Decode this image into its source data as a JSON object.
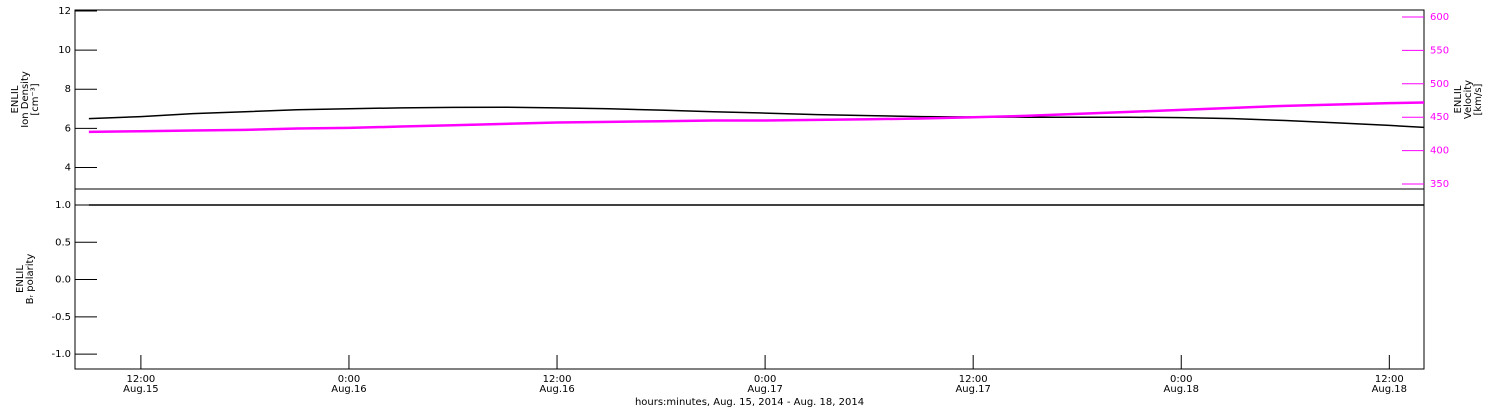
{
  "chart_data": [
    {
      "type": "line",
      "ylabel": [
        "ENLIL",
        "Ion Density",
        "[cm⁻³]"
      ],
      "y2label": [
        "ENLIL",
        "Velocity",
        "[km/s]"
      ],
      "x": [
        9,
        12,
        15,
        18,
        21,
        24,
        27,
        30,
        33,
        36,
        39,
        42,
        45,
        48,
        51,
        54,
        57,
        60,
        63,
        66,
        69,
        72,
        75,
        78,
        81,
        84,
        86
      ],
      "xlim": [
        8.2,
        86.0
      ],
      "ylim": [
        2.9,
        12.05
      ],
      "yticks": [
        4,
        6,
        8,
        10,
        12
      ],
      "y2lim": [
        342.5,
        610.5
      ],
      "y2ticks": [
        350,
        400,
        450,
        500,
        550,
        600
      ],
      "y2color": "#ff00ff",
      "series": [
        {
          "color": "#000000",
          "values": [
            6.5,
            6.6,
            6.75,
            6.85,
            6.95,
            7.0,
            7.05,
            7.07,
            7.08,
            7.05,
            7.0,
            6.93,
            6.85,
            6.78,
            6.7,
            6.65,
            6.6,
            6.58,
            6.57,
            6.57,
            6.57,
            6.55,
            6.5,
            6.4,
            6.28,
            6.15,
            6.05
          ]
        },
        {
          "color": "#ff00ff",
          "axis": "y2",
          "values": [
            428,
            429,
            430,
            431,
            433,
            434,
            436,
            438,
            440,
            442,
            443,
            444,
            445,
            445,
            446,
            447,
            448,
            450,
            452,
            455,
            458,
            461,
            464,
            467,
            469,
            471,
            472
          ]
        }
      ]
    },
    {
      "type": "line",
      "ylabel": [
        "ENLIL",
        "Bᵣ polarity"
      ],
      "xlabel": "hours:minutes, Aug. 15, 2014 - Aug. 18, 2014",
      "x": [
        9,
        12,
        15,
        18,
        21,
        24,
        27,
        30,
        33,
        36,
        39,
        42,
        45,
        48,
        51,
        54,
        57,
        60,
        63,
        66,
        69,
        72,
        75,
        78,
        81,
        84,
        86
      ],
      "xlim": [
        8.2,
        86.0
      ],
      "xticks": [
        {
          "value": 12,
          "label": [
            "12:00",
            "Aug.15"
          ]
        },
        {
          "value": 24,
          "label": [
            "0:00",
            "Aug.16"
          ]
        },
        {
          "value": 36,
          "label": [
            "12:00",
            "Aug.16"
          ]
        },
        {
          "value": 48,
          "label": [
            "0:00",
            "Aug.17"
          ]
        },
        {
          "value": 60,
          "label": [
            "12:00",
            "Aug.17"
          ]
        },
        {
          "value": 72,
          "label": [
            "0:00",
            "Aug.18"
          ]
        },
        {
          "value": 84,
          "label": [
            "12:00",
            "Aug.18"
          ]
        }
      ],
      "ylim": [
        -1.2,
        1.215
      ],
      "yticks": [
        {
          "value": 1,
          "label": "1.0"
        },
        {
          "value": 0.5,
          "label": "0.5"
        },
        {
          "value": 0,
          "label": "0.0"
        },
        {
          "value": -0.5,
          "label": "-0.5"
        },
        {
          "value": -1,
          "label": "-1.0"
        }
      ],
      "series": [
        {
          "color": "#000000",
          "values": [
            1,
            1,
            1,
            1,
            1,
            1,
            1,
            1,
            1,
            1,
            1,
            1,
            1,
            1,
            1,
            1,
            1,
            1,
            1,
            1,
            1,
            1,
            1,
            1,
            1,
            1,
            1
          ]
        }
      ]
    }
  ]
}
